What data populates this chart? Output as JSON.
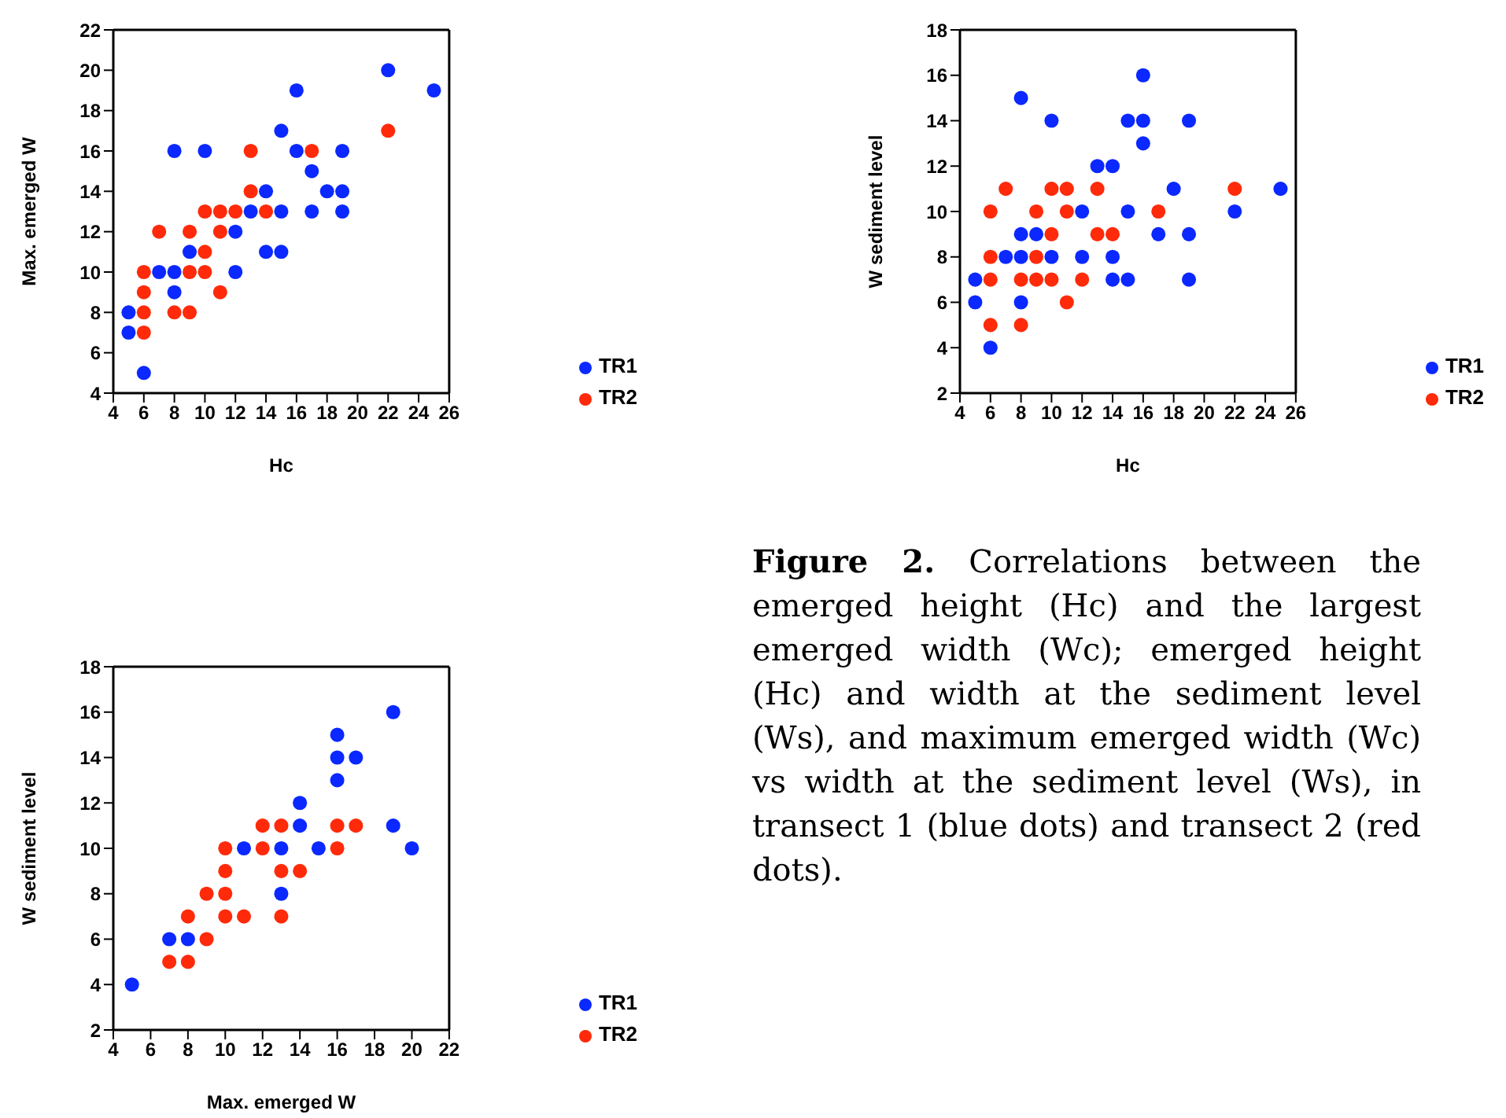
{
  "chart_data": [
    {
      "type": "scatter",
      "xlabel": "Hc",
      "ylabel": "Max. emerged W",
      "xlim": [
        4,
        26
      ],
      "xticks": [
        4,
        6,
        8,
        10,
        12,
        14,
        16,
        18,
        20,
        22,
        24,
        26
      ],
      "ylim": [
        4,
        22
      ],
      "yticks": [
        4,
        6,
        8,
        10,
        12,
        14,
        16,
        18,
        20,
        22
      ],
      "legend": "bottom right",
      "marker": "circle",
      "series": [
        {
          "name": "TR1",
          "color": "#0a28ff",
          "x": [
            5,
            5,
            6,
            7,
            8,
            8,
            8,
            9,
            10,
            12,
            12,
            13,
            14,
            14,
            15,
            15,
            15,
            16,
            16,
            17,
            17,
            18,
            19,
            19,
            19,
            22,
            25
          ],
          "values": [
            8,
            7,
            5,
            10,
            16,
            10,
            9,
            11,
            16,
            12,
            10,
            13,
            14,
            11,
            17,
            13,
            11,
            19,
            16,
            15,
            13,
            14,
            16,
            14,
            13,
            20,
            19
          ]
        },
        {
          "name": "TR2",
          "color": "#ff2a0a",
          "x": [
            6,
            6,
            6,
            6,
            7,
            8,
            9,
            9,
            9,
            10,
            10,
            10,
            11,
            11,
            11,
            12,
            13,
            13,
            14,
            17,
            22
          ],
          "values": [
            10,
            9,
            8,
            7,
            12,
            8,
            12,
            10,
            8,
            13,
            11,
            10,
            13,
            12,
            9,
            13,
            16,
            14,
            13,
            16,
            17
          ]
        }
      ]
    },
    {
      "type": "scatter",
      "xlabel": "Hc",
      "ylabel": "W sediment level",
      "xlim": [
        4,
        26
      ],
      "xticks": [
        4,
        6,
        8,
        10,
        12,
        14,
        16,
        18,
        20,
        22,
        24,
        26
      ],
      "ylim": [
        2,
        18
      ],
      "yticks": [
        2,
        4,
        6,
        8,
        10,
        12,
        14,
        16,
        18
      ],
      "legend": "bottom right",
      "marker": "circle",
      "series": [
        {
          "name": "TR1",
          "color": "#0a28ff",
          "x": [
            5,
            5,
            6,
            7,
            8,
            8,
            8,
            8,
            9,
            10,
            10,
            12,
            12,
            13,
            14,
            14,
            14,
            15,
            15,
            15,
            16,
            16,
            16,
            17,
            18,
            19,
            19,
            19,
            22,
            25
          ],
          "values": [
            7,
            6,
            4,
            8,
            15,
            9,
            8,
            6,
            9,
            14,
            8,
            10,
            8,
            12,
            12,
            8,
            7,
            14,
            10,
            7,
            16,
            14,
            13,
            9,
            11,
            14,
            9,
            7,
            10,
            11
          ]
        },
        {
          "name": "TR2",
          "color": "#ff2a0a",
          "x": [
            6,
            6,
            6,
            6,
            7,
            8,
            8,
            9,
            9,
            9,
            10,
            10,
            10,
            11,
            11,
            11,
            12,
            13,
            13,
            14,
            17,
            22
          ],
          "values": [
            10,
            8,
            7,
            5,
            11,
            7,
            5,
            10,
            8,
            7,
            11,
            9,
            7,
            11,
            10,
            6,
            7,
            11,
            9,
            9,
            10,
            11
          ]
        }
      ]
    },
    {
      "type": "scatter",
      "xlabel": "Max. emerged W",
      "ylabel": "W sediment level",
      "xlim": [
        4,
        22
      ],
      "xticks": [
        4,
        6,
        8,
        10,
        12,
        14,
        16,
        18,
        20,
        22
      ],
      "ylim": [
        2,
        18
      ],
      "yticks": [
        2,
        4,
        6,
        8,
        10,
        12,
        14,
        16,
        18
      ],
      "legend": "bottom right",
      "marker": "circle",
      "annotations": [
        "Figure 2.",
        "Correlations between the emerged height (Hc) and the largest emerged width (Wc); emerged height (Hc) and width at the sediment level (Ws), and maximum emerged width (Wc) vs width at the sediment level (Ws), in transect 1 (blue dots) and transect 2 (red dots)."
      ],
      "series": [
        {
          "name": "TR1",
          "color": "#0a28ff",
          "x": [
            5,
            7,
            8,
            11,
            13,
            13,
            14,
            14,
            15,
            16,
            16,
            16,
            17,
            19,
            19,
            20
          ],
          "values": [
            4,
            6,
            6,
            10,
            10,
            8,
            12,
            11,
            10,
            15,
            14,
            13,
            14,
            16,
            11,
            10
          ]
        },
        {
          "name": "TR2",
          "color": "#ff2a0a",
          "x": [
            7,
            8,
            8,
            9,
            9,
            10,
            10,
            10,
            10,
            11,
            12,
            12,
            13,
            13,
            13,
            14,
            16,
            16,
            17
          ],
          "values": [
            5,
            5,
            7,
            6,
            8,
            10,
            9,
            8,
            7,
            7,
            11,
            10,
            11,
            9,
            7,
            9,
            11,
            10,
            11
          ]
        }
      ]
    }
  ]
}
